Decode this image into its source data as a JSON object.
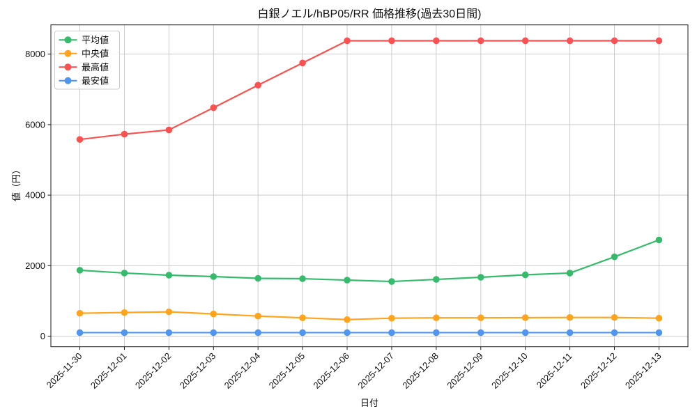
{
  "chart_data": {
    "type": "line",
    "title": "白銀ノエル/hBP05/RR 価格推移(過去30日間)",
    "xlabel": "日付",
    "ylabel": "値（円）",
    "x": [
      "2025-11-30",
      "2025-12-01",
      "2025-12-02",
      "2025-12-03",
      "2025-12-04",
      "2025-12-05",
      "2025-12-06",
      "2025-12-07",
      "2025-12-08",
      "2025-12-09",
      "2025-12-10",
      "2025-12-11",
      "2025-12-12",
      "2025-12-13"
    ],
    "series": [
      {
        "key": "average",
        "name": "平均値",
        "color": "#34bb6b",
        "values": [
          1870,
          1790,
          1730,
          1690,
          1640,
          1630,
          1590,
          1550,
          1610,
          1670,
          1740,
          1790,
          2250,
          2730
        ]
      },
      {
        "key": "median",
        "name": "中央値",
        "color": "#ffa41c",
        "values": [
          650,
          670,
          690,
          630,
          570,
          520,
          470,
          510,
          520,
          520,
          525,
          530,
          530,
          510
        ]
      },
      {
        "key": "max",
        "name": "最高値",
        "color": "#f85252",
        "values": [
          5580,
          5730,
          5850,
          6480,
          7120,
          7750,
          8380,
          8380,
          8380,
          8380,
          8380,
          8380,
          8380,
          8380
        ]
      },
      {
        "key": "min",
        "name": "最安値",
        "color": "#4e96f0",
        "values": [
          100,
          100,
          100,
          100,
          100,
          100,
          100,
          100,
          100,
          100,
          100,
          100,
          100,
          100
        ]
      }
    ],
    "yticks": [
      0,
      2000,
      4000,
      6000,
      8000
    ],
    "ylim": [
      -300,
      8830
    ],
    "grid": true,
    "legend_position": "upper left",
    "legend_order": [
      "平均値",
      "中央値",
      "最高値",
      "最安値"
    ],
    "colors": {
      "grid": "#c6c6c6",
      "axis_border": "#1a1a1a",
      "legend_border": "#cccccc",
      "legend_bg": "#ffffff"
    }
  }
}
